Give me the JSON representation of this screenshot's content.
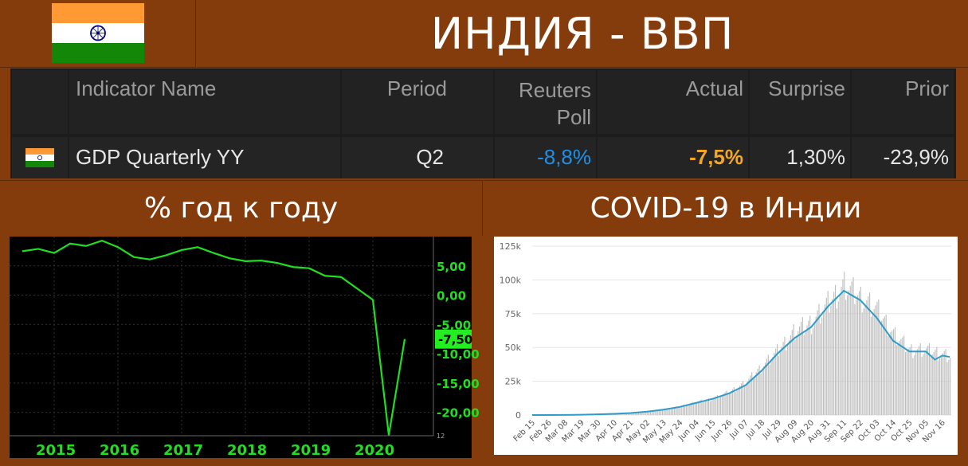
{
  "header": {
    "title": "ИНДИЯ - ВВП",
    "flag_colors": {
      "saffron": "#ff9933",
      "white": "#ffffff",
      "green": "#138808",
      "chakra": "#000080"
    }
  },
  "table": {
    "columns": [
      "Indicator Name",
      "Period",
      "Reuters Poll",
      "Actual",
      "Surprise",
      "Prior"
    ],
    "column_lines": {
      "reuters_1": "Reuters",
      "reuters_2": "Poll"
    },
    "row": {
      "indicator": "GDP Quarterly YY",
      "period": "Q2",
      "reuters_poll": "-8,8%",
      "actual": "-7,5%",
      "surprise": "1,30%",
      "prior": "-23,9%"
    },
    "colors": {
      "poll": "#1e90e8",
      "actual": "#f5a623"
    }
  },
  "sections": {
    "left_title": "% год к году",
    "right_title": "COVID-19 в Индии"
  },
  "chart_data": [
    {
      "type": "line",
      "title": "% год к году",
      "x_tick_labels": [
        "2015",
        "2016",
        "2017",
        "2018",
        "2019",
        "2020"
      ],
      "y_tick_labels": [
        "5,00",
        "0,00",
        "-5,00",
        "-10,00",
        "-15,00",
        "-20,00"
      ],
      "ylim": [
        -24,
        10
      ],
      "current_value_label": "-7,50",
      "corner_label": "12",
      "series": [
        {
          "color": "#22dd22",
          "x": [
            2014.5,
            2014.75,
            2015.0,
            2015.25,
            2015.5,
            2015.75,
            2016.0,
            2016.25,
            2016.5,
            2016.75,
            2017.0,
            2017.25,
            2017.5,
            2017.75,
            2018.0,
            2018.25,
            2018.5,
            2018.75,
            2019.0,
            2019.25,
            2019.5,
            2020.0,
            2020.25,
            2020.5
          ],
          "values": [
            7.5,
            7.9,
            7.2,
            8.8,
            8.4,
            9.3,
            8.2,
            6.5,
            6.1,
            6.8,
            7.7,
            8.2,
            7.2,
            6.3,
            5.8,
            5.9,
            5.5,
            4.8,
            4.6,
            3.3,
            3.1,
            -0.8,
            -23.9,
            -7.5
          ]
        }
      ]
    },
    {
      "type": "bar",
      "title": "COVID-19 в Индии",
      "y_tick_labels": [
        "125k",
        "100k",
        "75k",
        "50k",
        "25k",
        "0"
      ],
      "ylim": [
        0,
        125000
      ],
      "x_tick_labels": [
        "Feb 15",
        "Feb 26",
        "Mar 08",
        "Mar 19",
        "Mar 30",
        "Apr 10",
        "Apr 21",
        "May 02",
        "May 13",
        "May 24",
        "Jun 04",
        "Jun 15",
        "Jun 26",
        "Jul 07",
        "Jul 18",
        "Jul 29",
        "Aug 09",
        "Aug 20",
        "Aug 31",
        "Sep 11",
        "Sep 22",
        "Oct 03",
        "Oct 14",
        "Oct 25",
        "Nov 05",
        "Nov 16"
      ],
      "series": [
        {
          "kind": "bars",
          "color": "#bdbdbd",
          "x": [
            0,
            11,
            22,
            33,
            44,
            55,
            66,
            77,
            88,
            99,
            110,
            121,
            132,
            143,
            154,
            165,
            176,
            187,
            198,
            209,
            220,
            231,
            242,
            253,
            264,
            275,
            280
          ],
          "values": [
            0,
            0,
            0,
            100,
            1000,
            800,
            1500,
            2500,
            3800,
            6500,
            9500,
            12000,
            17000,
            24000,
            36000,
            48000,
            62000,
            68000,
            82000,
            96000,
            87000,
            78000,
            60000,
            48000,
            48000,
            45000,
            43000
          ]
        },
        {
          "kind": "moving-average",
          "color": "#2f9bc7",
          "x": [
            0,
            11,
            22,
            33,
            44,
            55,
            66,
            77,
            88,
            99,
            110,
            121,
            132,
            143,
            154,
            165,
            176,
            187,
            198,
            209,
            220,
            231,
            242,
            253,
            264,
            270,
            275,
            280
          ],
          "values": [
            0,
            0,
            50,
            200,
            500,
            900,
            1500,
            2500,
            4000,
            6000,
            9000,
            12000,
            16000,
            22000,
            33000,
            46000,
            57000,
            65000,
            80000,
            92000,
            85000,
            72000,
            55000,
            47000,
            47000,
            41000,
            44000,
            43000
          ]
        }
      ]
    }
  ]
}
